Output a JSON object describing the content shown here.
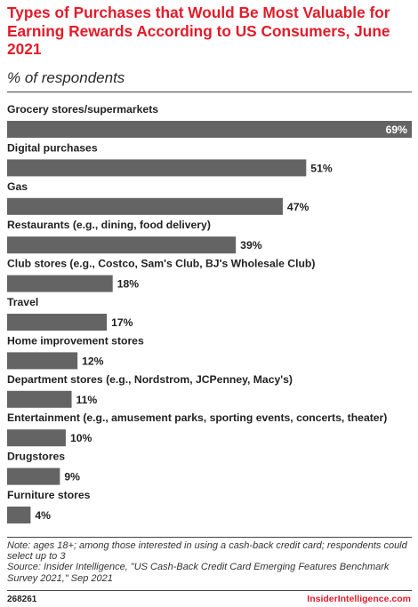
{
  "header": {
    "title": "Types of Purchases that Would Be Most Valuable for Earning Rewards According to US Consumers, June 2021",
    "subtitle": "% of respondents"
  },
  "chart_data": {
    "type": "bar",
    "orientation": "horizontal",
    "title": "Types of Purchases that Would Be Most Valuable for Earning Rewards According to US Consumers, June 2021",
    "subtitle": "% of respondents",
    "xlabel": "",
    "ylabel": "",
    "xlim": [
      0,
      69
    ],
    "grid": false,
    "bar_color": "#646464",
    "categories": [
      "Grocery stores/supermarkets",
      "Digital purchases",
      "Gas",
      "Restaurants (e.g., dining, food delivery)",
      "Club stores (e.g., Costco, Sam's Club, BJ's Wholesale Club)",
      "Travel",
      "Home improvement stores",
      "Department stores (e.g., Nordstrom, JCPenney, Macy's)",
      "Entertainment (e.g., amusement parks, sporting events, concerts, theater)",
      "Drugstores",
      "Furniture stores"
    ],
    "values": [
      69,
      51,
      47,
      39,
      18,
      17,
      12,
      11,
      10,
      9,
      4
    ],
    "value_labels": [
      "69%",
      "51%",
      "47%",
      "39%",
      "18%",
      "17%",
      "12%",
      "11%",
      "10%",
      "9%",
      "4%"
    ]
  },
  "footer": {
    "note_lines": [
      "Note: ages 18+; among those interested in using a cash-back credit card; respondents could select up to 3",
      "Source: Insider Intelligence, \"US Cash-Back Credit Card Emerging Features Benchmark Survey 2021,\" Sep 2021"
    ],
    "chart_id": "268261",
    "brand": "InsiderIntelligence.com"
  },
  "colors": {
    "title": "#e21b2a",
    "bar": "#646464",
    "brand": "#e21b2a"
  }
}
